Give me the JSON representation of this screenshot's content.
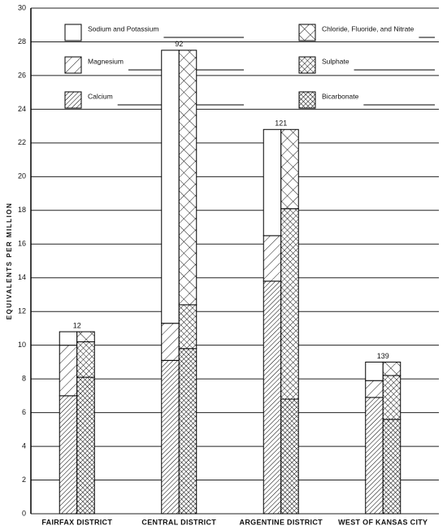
{
  "chart_data": {
    "type": "stacked-pair-bar",
    "y_label": "EQUIVALENTS PER MILLION",
    "categories": [
      "FAIRFAX DISTRICT",
      "CENTRAL DISTRICT",
      "ARGENTINE DISTRICT",
      "WEST OF KANSAS CITY"
    ],
    "sample_labels": [
      "12",
      "92",
      "121",
      "139"
    ],
    "series": [
      {
        "name": "Calcium",
        "stack": 0,
        "values": [
          7.0,
          9.1,
          13.8,
          6.9
        ]
      },
      {
        "name": "Magnesium",
        "stack": 0,
        "values": [
          3.0,
          2.2,
          2.7,
          1.0
        ]
      },
      {
        "name": "Sodium and Potassium",
        "stack": 0,
        "values": [
          0.8,
          16.2,
          6.3,
          1.1
        ]
      },
      {
        "name": "Bicarbonate",
        "stack": 1,
        "values": [
          8.1,
          9.8,
          6.8,
          5.6
        ]
      },
      {
        "name": "Sulphate",
        "stack": 1,
        "values": [
          2.1,
          2.6,
          11.3,
          2.6
        ]
      },
      {
        "name": "Chloride, Fluoride, and Nitrate",
        "stack": 1,
        "values": [
          0.6,
          15.1,
          4.7,
          0.8
        ]
      }
    ],
    "ylim": [
      0,
      30
    ],
    "yticks": [
      0,
      2,
      4,
      6,
      8,
      10,
      12,
      14,
      16,
      18,
      20,
      22,
      24,
      26,
      28,
      30
    ],
    "grid": true
  }
}
